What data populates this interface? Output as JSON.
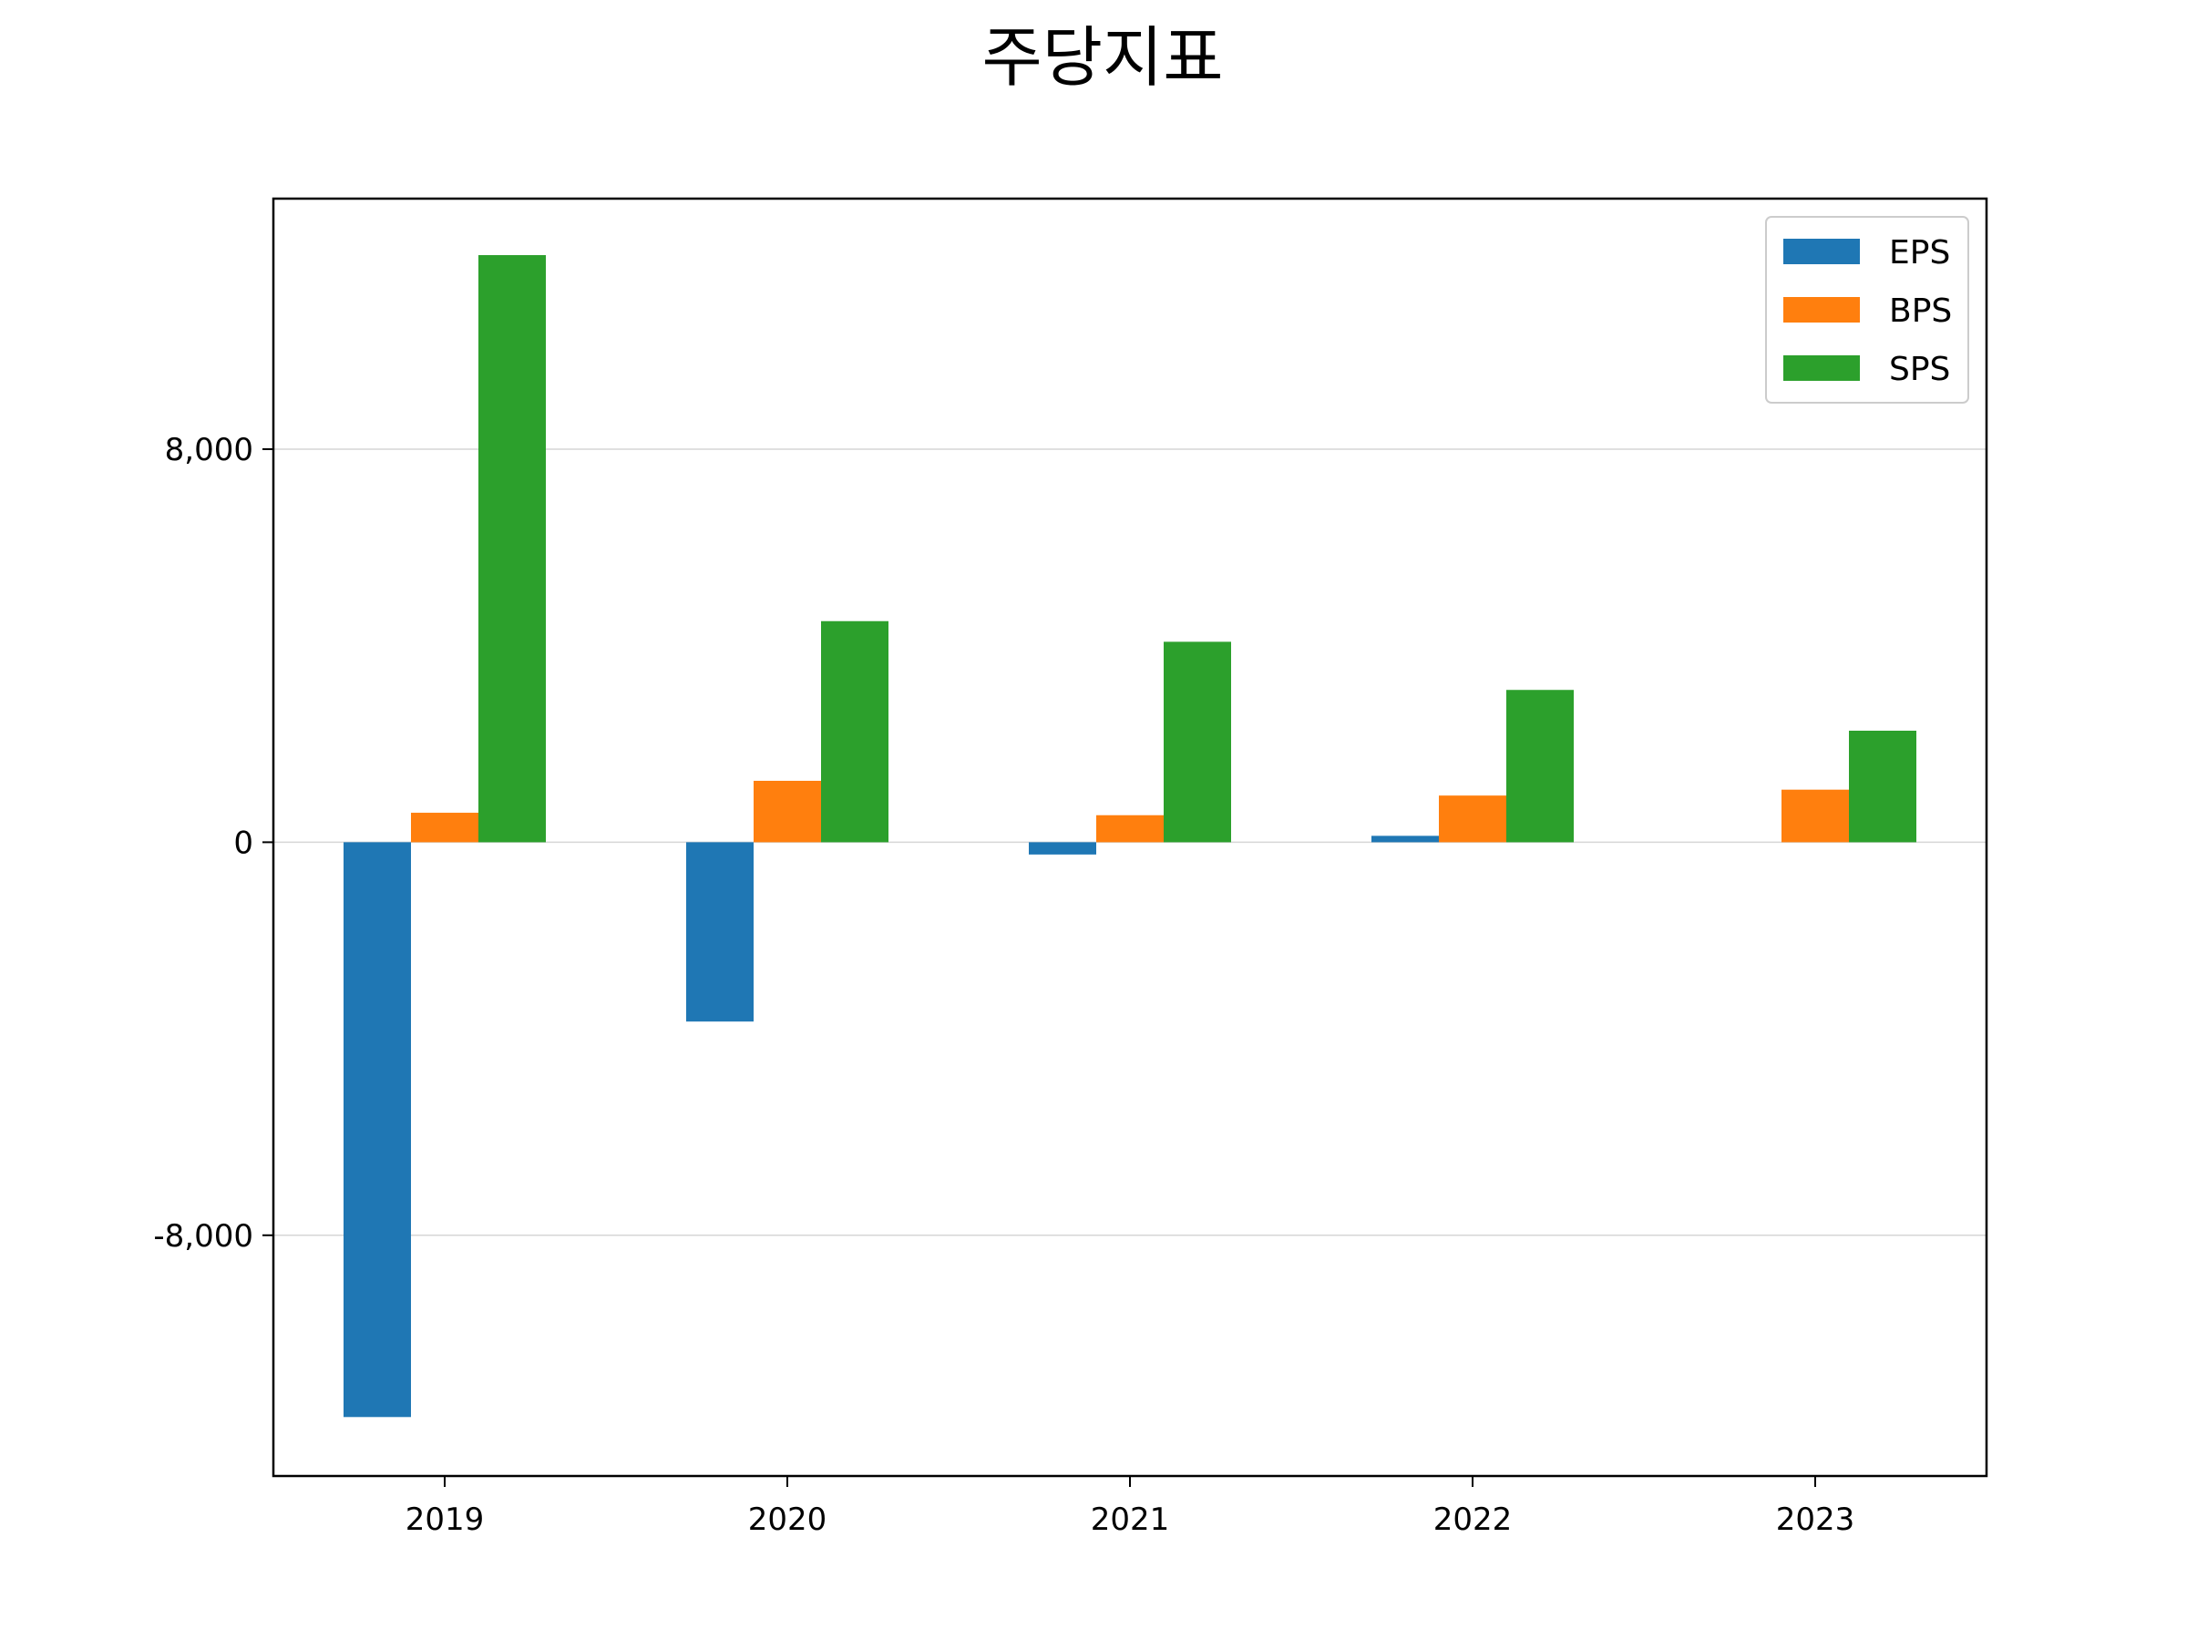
{
  "chart_data": {
    "type": "bar",
    "title": "주당지표",
    "xlabel": "",
    "ylabel": "",
    "categories": [
      "2019",
      "2020",
      "2021",
      "2022",
      "2023"
    ],
    "series": [
      {
        "name": "EPS",
        "color": "#1f77b4",
        "values": [
          -11700,
          -3650,
          -250,
          130,
          0
        ]
      },
      {
        "name": "BPS",
        "color": "#ff7f0e",
        "values": [
          600,
          1250,
          550,
          950,
          1070
        ]
      },
      {
        "name": "SPS",
        "color": "#2ca02c",
        "values": [
          11950,
          4500,
          4080,
          3100,
          2270
        ]
      }
    ],
    "ylim": [
      -12900,
      13100
    ],
    "yticks": [
      -8000,
      0,
      8000
    ],
    "ytick_labels": [
      "-8,000",
      "0",
      "8,000"
    ],
    "grid": "horizontal",
    "legend_position": "top-right"
  }
}
